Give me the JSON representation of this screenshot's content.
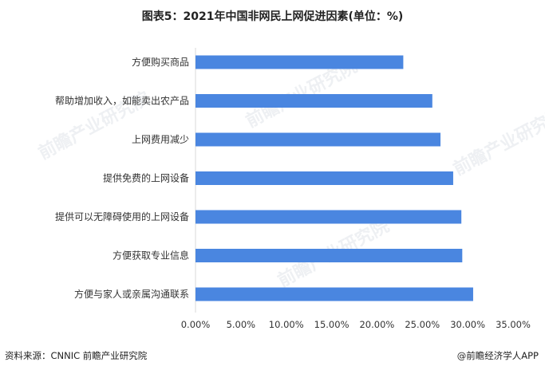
{
  "title": "图表5：2021年中国非网民上网促进因素(单位：%)",
  "source": "资料来源：CNNIC 前瞻产业研究院",
  "credit": "@前瞻经济学人APP",
  "watermark_text": "前瞻产业研究院",
  "bar_color": "#4a86e0",
  "chart_data": {
    "type": "bar",
    "orientation": "horizontal",
    "categories": [
      "方便购买商品",
      "帮助增加收入，如能卖出农产品",
      "上网费用减少",
      "提供免费的上网设备",
      "提供可以无障碍使用的上网设备",
      "方便获取专业信息",
      "方便与家人或亲属沟通联系"
    ],
    "values": [
      22.9,
      26.1,
      27.0,
      28.4,
      29.3,
      29.4,
      30.6
    ],
    "xlim": [
      0,
      35
    ],
    "xticks": [
      0,
      5,
      10,
      15,
      20,
      25,
      30,
      35
    ],
    "tick_labels": [
      "0.00%",
      "5.00%",
      "10.00%",
      "15.00%",
      "20.00%",
      "25.00%",
      "30.00%",
      "35.00%"
    ],
    "grid": false,
    "legend": false
  }
}
